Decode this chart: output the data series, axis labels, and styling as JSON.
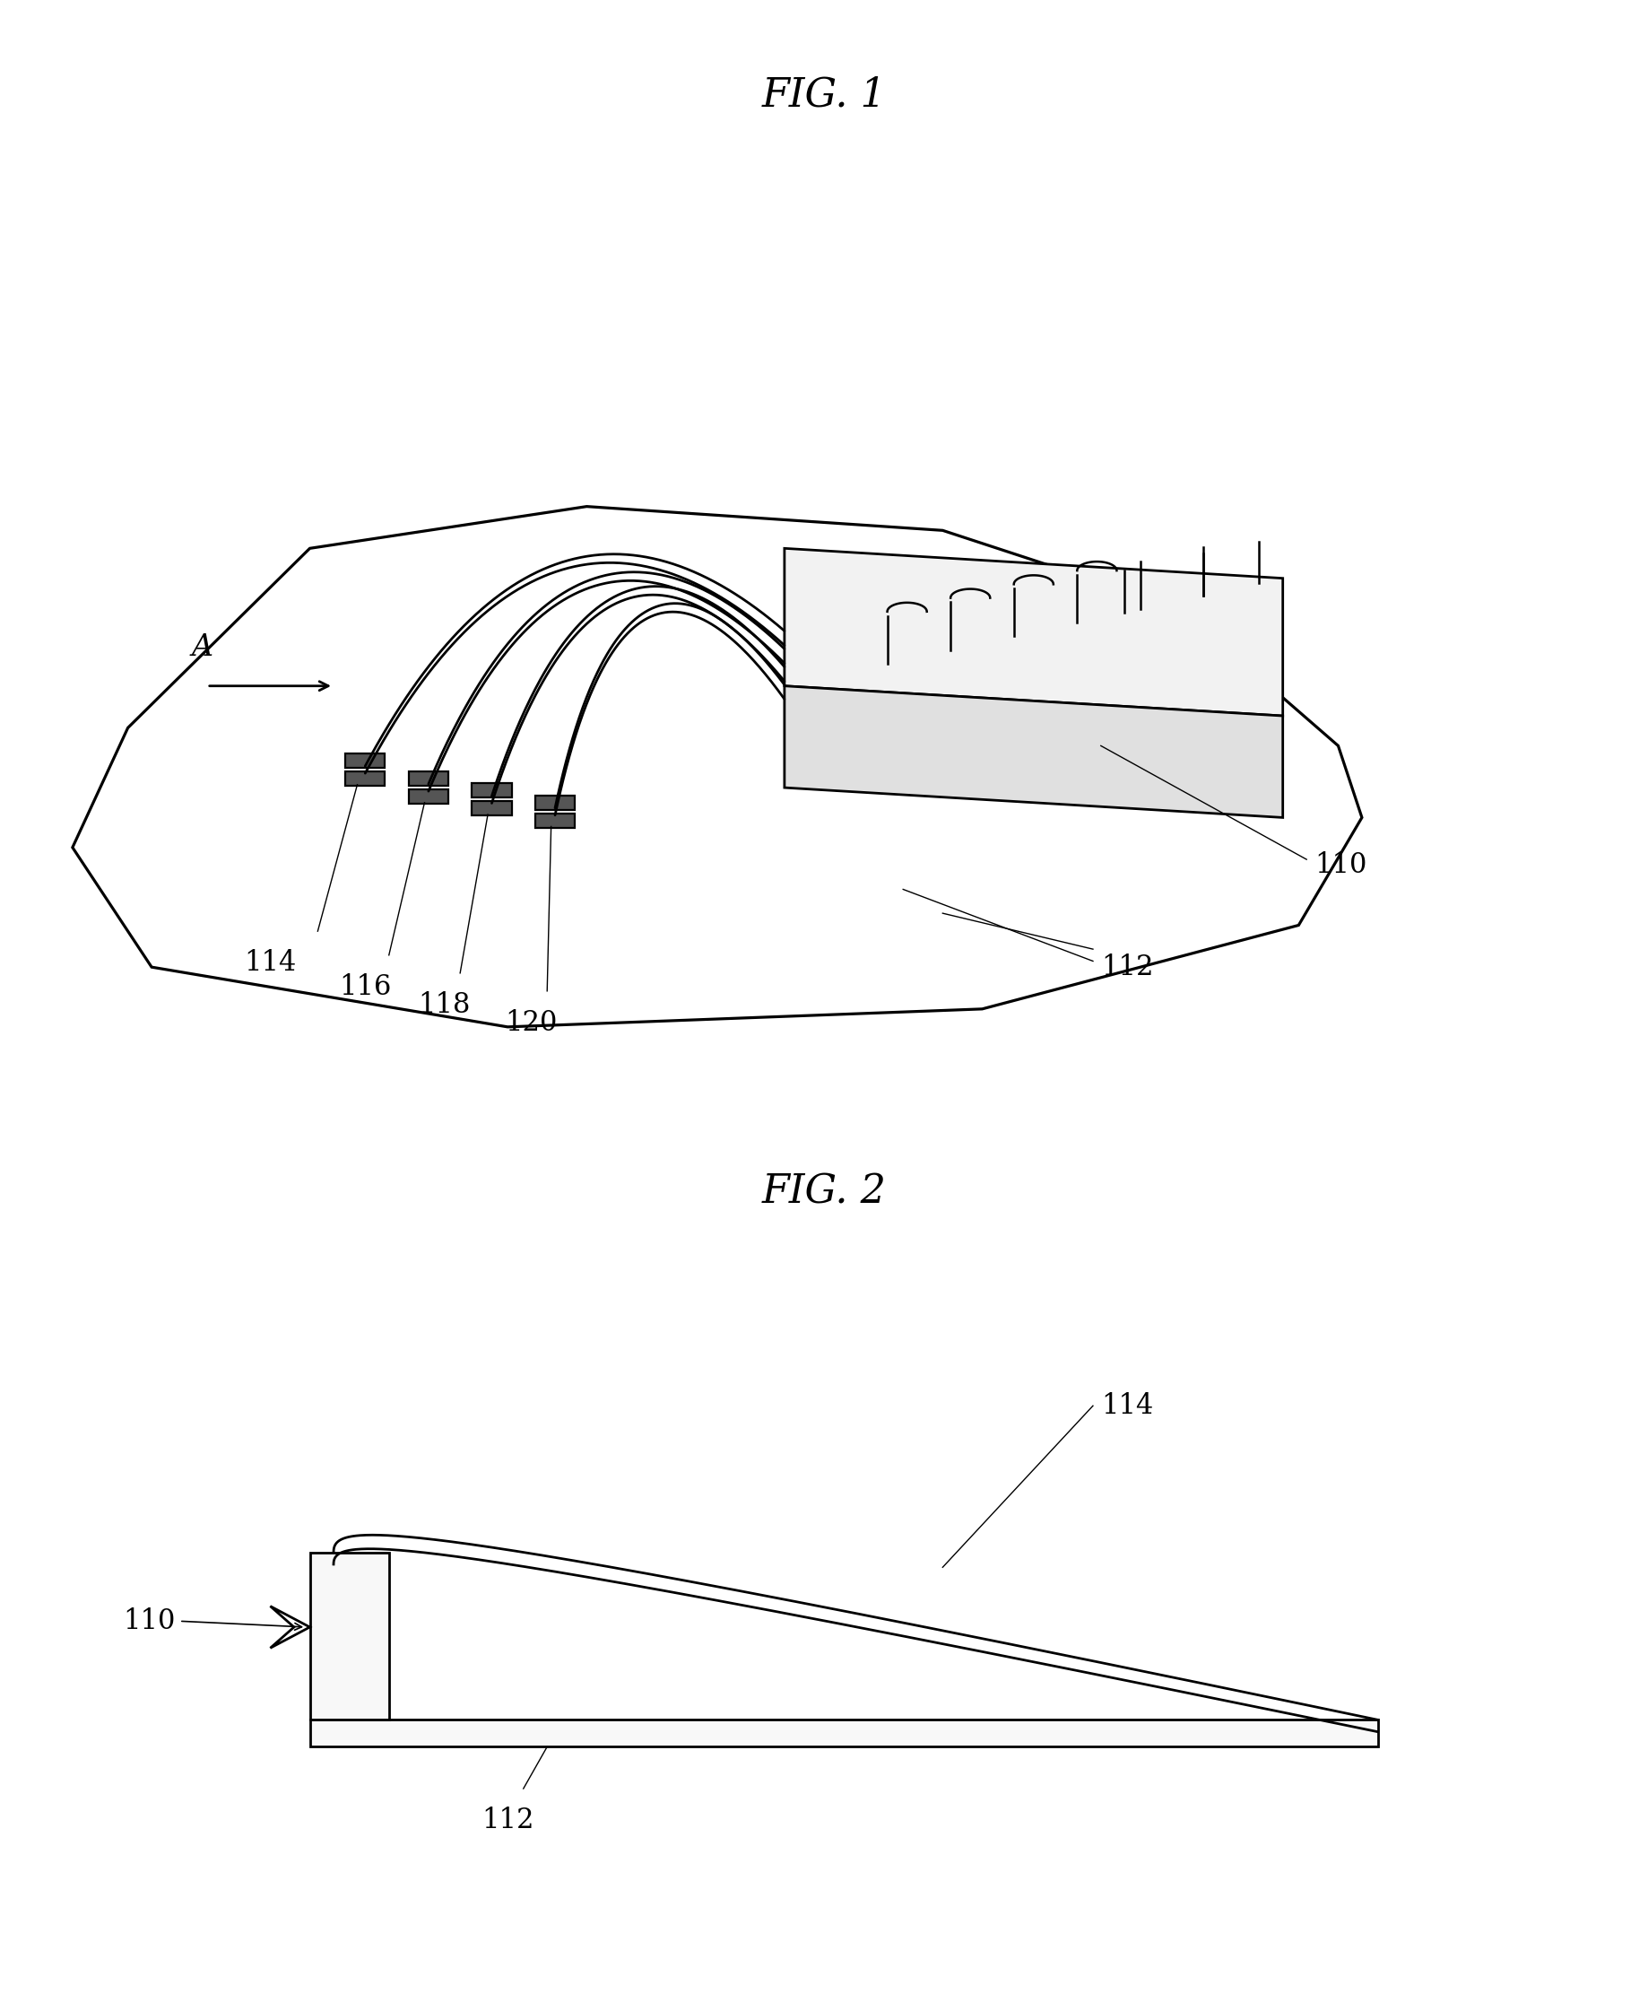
{
  "fig_title_1": "FIG. 1",
  "fig_title_2": "FIG. 2",
  "label_110_fig1": "110",
  "label_112_fig1": "112",
  "label_114_fig1": "114",
  "label_116_fig1": "116",
  "label_118_fig1": "118",
  "label_120_fig1": "120",
  "label_A": "A",
  "label_110_fig2": "110",
  "label_112_fig2": "112",
  "label_114_fig2": "114",
  "line_color": "#000000",
  "bg_color": "#ffffff",
  "line_width": 2.0,
  "title_fontsize": 32,
  "label_fontsize": 22
}
